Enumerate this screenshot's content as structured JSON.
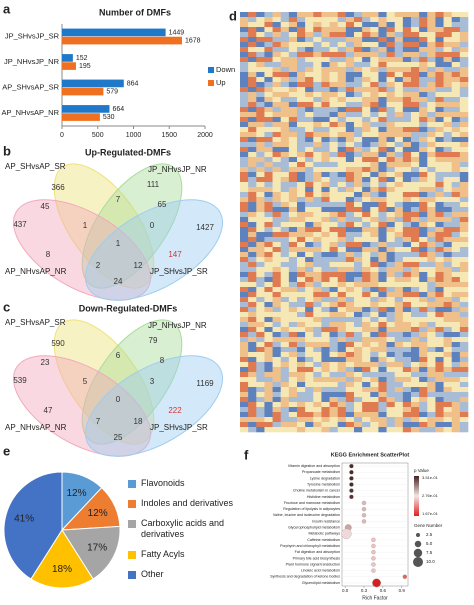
{
  "chart_data": [
    {
      "type": "bar",
      "panel": "a",
      "title": "Number of DMFs",
      "orientation": "horizontal",
      "categories": [
        "JP_SHvsJP_SR",
        "JP_NHvsJP_NR",
        "AP_SHvsAP_SR",
        "AP_NHvsAP_NR"
      ],
      "series": [
        {
          "name": "Down",
          "color": "#1f78c8",
          "values": [
            1449,
            152,
            864,
            664
          ]
        },
        {
          "name": "Up",
          "color": "#f07022",
          "values": [
            1678,
            195,
            579,
            530
          ]
        }
      ],
      "xlim": [
        0,
        2000
      ],
      "xticks": [
        0,
        500,
        1000,
        1500,
        2000
      ],
      "legend": "right"
    },
    {
      "type": "venn",
      "panel": "b",
      "title": "Up-Regulated-DMFs",
      "sets": [
        "AP_SHvsAP_SR",
        "JP_NHvsJP_NR",
        "AP_NHvsAP_NR",
        "JP_SHvsJP_SR"
      ],
      "colors": [
        "#eee27a",
        "#a8dc9a",
        "#f2a9bd",
        "#9dcdf0"
      ],
      "regions": [
        437,
        366,
        111,
        1427,
        45,
        7,
        65,
        1,
        1,
        0,
        8,
        2,
        12,
        147,
        24
      ],
      "region_colors": [
        "#333",
        "#333",
        "#333",
        "#333",
        "#333",
        "#333",
        "#333",
        "#333",
        "#333",
        "#333",
        "#333",
        "#333",
        "#333",
        "#e03030",
        "#333"
      ]
    },
    {
      "type": "venn",
      "panel": "c",
      "title": "Down-Regulated-DMFs",
      "sets": [
        "AP_SHvsAP_SR",
        "JP_NHvsJP_NR",
        "AP_NHvsAP_NR",
        "JP_SHvsJP_SR"
      ],
      "colors": [
        "#eee27a",
        "#a8dc9a",
        "#f2a9bd",
        "#9dcdf0"
      ],
      "regions": [
        539,
        590,
        79,
        1169,
        23,
        6,
        8,
        5,
        0,
        3,
        47,
        7,
        18,
        222,
        25
      ],
      "region_colors": [
        "#333",
        "#333",
        "#333",
        "#333",
        "#333",
        "#333",
        "#333",
        "#333",
        "#333",
        "#333",
        "#333",
        "#333",
        "#333",
        "#e03030",
        "#333"
      ]
    },
    {
      "type": "heatmap",
      "panel": "d"
    },
    {
      "type": "pie",
      "panel": "e",
      "categories": [
        "Flavonoids",
        "Indoles and derivatives",
        "Carboxylic acids and derivatives",
        "Fatty Acyls",
        "Other"
      ],
      "values": [
        12,
        12,
        17,
        18,
        41
      ],
      "value_labels": [
        "12%",
        "12%",
        "17%",
        "18%",
        "41%"
      ],
      "colors": [
        "#5b9bd5",
        "#ed7d31",
        "#a5a5a5",
        "#ffc000",
        "#4472c4"
      ]
    },
    {
      "type": "scatter",
      "panel": "f",
      "title": "KEGG Enrichment ScatterPlot",
      "xlabel": "Rich Factor",
      "categories": [
        "Vitamin digestion and absorption",
        "Propanoate metabolism",
        "Lysine degradation",
        "Tyrosine metabolism",
        "Choline metabolism in cancer",
        "Histidine metabolism",
        "Fructose and mannose metabolism",
        "Regulation of lipolysis in adipocytes",
        "Valine, leucine and isoleucine degradation",
        "Insulin resistance",
        "Glycerophospholipid metabolism",
        "Metabolic pathways",
        "Caffeine metabolism",
        "Porphyrin and chlorophyll metabolism",
        "Fat digestion and absorption",
        "Primary bile acid biosynthesis",
        "Plant hormone signal transduction",
        "Linoleic acid metabolism",
        "Synthesis and degradation of ketone bodies",
        "Glycerolipid metabolism"
      ],
      "x": [
        0.1,
        0.1,
        0.1,
        0.1,
        0.1,
        0.1,
        0.3,
        0.3,
        0.3,
        0.3,
        0.05,
        0.02,
        0.45,
        0.45,
        0.45,
        0.45,
        0.45,
        0.45,
        0.95,
        0.5
      ],
      "sizes": [
        2.5,
        2.5,
        2.5,
        2.5,
        2.5,
        2.5,
        2.5,
        2.5,
        2.5,
        2.5,
        5,
        10,
        2.5,
        2.5,
        2.5,
        2.5,
        2.5,
        2.5,
        2.5,
        7.5
      ],
      "colors": [
        "#4a2a2a",
        "#4a2a2a",
        "#4a2a2a",
        "#4a2a2a",
        "#5a3030",
        "#5a3030",
        "#d9b8b8",
        "#d9b8b8",
        "#d9b8b8",
        "#d9b8b8",
        "#c9a5a5",
        "#f0d8d8",
        "#f0c0c0",
        "#f0c0c0",
        "#f0c0c0",
        "#f0c0c0",
        "#f0c0c0",
        "#f0c0c0",
        "#e86060",
        "#d42020"
      ],
      "xlim": [
        -0.05,
        1.0
      ],
      "xticks": [
        {
          "value": 0,
          "label": "0.0"
        },
        0.3,
        0.6,
        0.9
      ],
      "colorbar_title": "p Value",
      "colorbar_labels": [
        "3.51e-01",
        "2.76e-01",
        "1.67e-01"
      ],
      "colorbar_colors": [
        "#4a2020",
        "#f4e6e6",
        "#e02020"
      ],
      "size_title": "Gene Number",
      "size_legend": [
        2.5,
        {
          "value": 5,
          "label": "5.0"
        },
        7.5,
        {
          "value": 10,
          "label": "10.0"
        }
      ]
    }
  ]
}
